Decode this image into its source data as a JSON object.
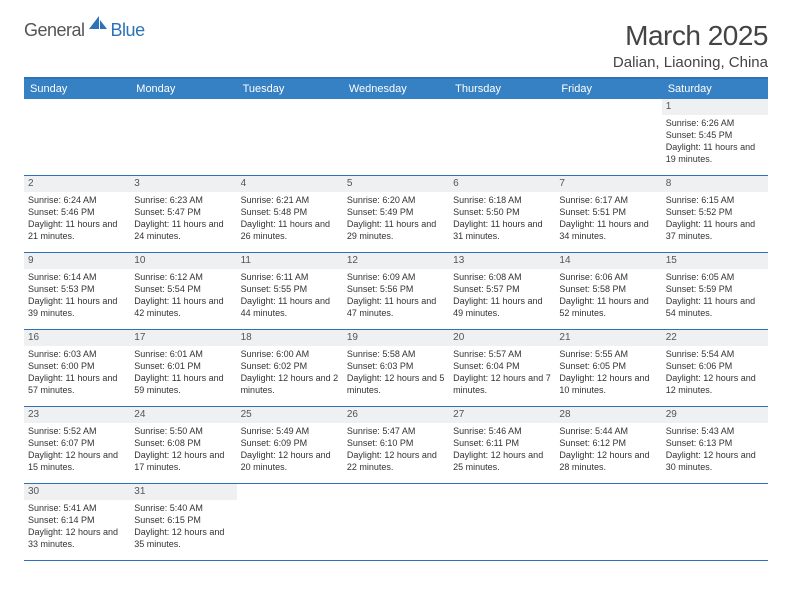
{
  "logo": {
    "text1": "General",
    "text2": "Blue"
  },
  "title": "March 2025",
  "location": "Dalian, Liaoning, China",
  "colors": {
    "header_bg": "#3680c4",
    "border": "#2d72b8",
    "daynum_bg": "#eef0f2",
    "text": "#333333",
    "page_bg": "#ffffff"
  },
  "dow": [
    "Sunday",
    "Monday",
    "Tuesday",
    "Wednesday",
    "Thursday",
    "Friday",
    "Saturday"
  ],
  "weeks": [
    [
      null,
      null,
      null,
      null,
      null,
      null,
      {
        "n": "1",
        "sr": "6:26 AM",
        "ss": "5:45 PM",
        "dl": "11 hours and 19 minutes."
      }
    ],
    [
      {
        "n": "2",
        "sr": "6:24 AM",
        "ss": "5:46 PM",
        "dl": "11 hours and 21 minutes."
      },
      {
        "n": "3",
        "sr": "6:23 AM",
        "ss": "5:47 PM",
        "dl": "11 hours and 24 minutes."
      },
      {
        "n": "4",
        "sr": "6:21 AM",
        "ss": "5:48 PM",
        "dl": "11 hours and 26 minutes."
      },
      {
        "n": "5",
        "sr": "6:20 AM",
        "ss": "5:49 PM",
        "dl": "11 hours and 29 minutes."
      },
      {
        "n": "6",
        "sr": "6:18 AM",
        "ss": "5:50 PM",
        "dl": "11 hours and 31 minutes."
      },
      {
        "n": "7",
        "sr": "6:17 AM",
        "ss": "5:51 PM",
        "dl": "11 hours and 34 minutes."
      },
      {
        "n": "8",
        "sr": "6:15 AM",
        "ss": "5:52 PM",
        "dl": "11 hours and 37 minutes."
      }
    ],
    [
      {
        "n": "9",
        "sr": "6:14 AM",
        "ss": "5:53 PM",
        "dl": "11 hours and 39 minutes."
      },
      {
        "n": "10",
        "sr": "6:12 AM",
        "ss": "5:54 PM",
        "dl": "11 hours and 42 minutes."
      },
      {
        "n": "11",
        "sr": "6:11 AM",
        "ss": "5:55 PM",
        "dl": "11 hours and 44 minutes."
      },
      {
        "n": "12",
        "sr": "6:09 AM",
        "ss": "5:56 PM",
        "dl": "11 hours and 47 minutes."
      },
      {
        "n": "13",
        "sr": "6:08 AM",
        "ss": "5:57 PM",
        "dl": "11 hours and 49 minutes."
      },
      {
        "n": "14",
        "sr": "6:06 AM",
        "ss": "5:58 PM",
        "dl": "11 hours and 52 minutes."
      },
      {
        "n": "15",
        "sr": "6:05 AM",
        "ss": "5:59 PM",
        "dl": "11 hours and 54 minutes."
      }
    ],
    [
      {
        "n": "16",
        "sr": "6:03 AM",
        "ss": "6:00 PM",
        "dl": "11 hours and 57 minutes."
      },
      {
        "n": "17",
        "sr": "6:01 AM",
        "ss": "6:01 PM",
        "dl": "11 hours and 59 minutes."
      },
      {
        "n": "18",
        "sr": "6:00 AM",
        "ss": "6:02 PM",
        "dl": "12 hours and 2 minutes."
      },
      {
        "n": "19",
        "sr": "5:58 AM",
        "ss": "6:03 PM",
        "dl": "12 hours and 5 minutes."
      },
      {
        "n": "20",
        "sr": "5:57 AM",
        "ss": "6:04 PM",
        "dl": "12 hours and 7 minutes."
      },
      {
        "n": "21",
        "sr": "5:55 AM",
        "ss": "6:05 PM",
        "dl": "12 hours and 10 minutes."
      },
      {
        "n": "22",
        "sr": "5:54 AM",
        "ss": "6:06 PM",
        "dl": "12 hours and 12 minutes."
      }
    ],
    [
      {
        "n": "23",
        "sr": "5:52 AM",
        "ss": "6:07 PM",
        "dl": "12 hours and 15 minutes."
      },
      {
        "n": "24",
        "sr": "5:50 AM",
        "ss": "6:08 PM",
        "dl": "12 hours and 17 minutes."
      },
      {
        "n": "25",
        "sr": "5:49 AM",
        "ss": "6:09 PM",
        "dl": "12 hours and 20 minutes."
      },
      {
        "n": "26",
        "sr": "5:47 AM",
        "ss": "6:10 PM",
        "dl": "12 hours and 22 minutes."
      },
      {
        "n": "27",
        "sr": "5:46 AM",
        "ss": "6:11 PM",
        "dl": "12 hours and 25 minutes."
      },
      {
        "n": "28",
        "sr": "5:44 AM",
        "ss": "6:12 PM",
        "dl": "12 hours and 28 minutes."
      },
      {
        "n": "29",
        "sr": "5:43 AM",
        "ss": "6:13 PM",
        "dl": "12 hours and 30 minutes."
      }
    ],
    [
      {
        "n": "30",
        "sr": "5:41 AM",
        "ss": "6:14 PM",
        "dl": "12 hours and 33 minutes."
      },
      {
        "n": "31",
        "sr": "5:40 AM",
        "ss": "6:15 PM",
        "dl": "12 hours and 35 minutes."
      },
      null,
      null,
      null,
      null,
      null
    ]
  ],
  "labels": {
    "sunrise": "Sunrise: ",
    "sunset": "Sunset: ",
    "daylight": "Daylight: "
  }
}
